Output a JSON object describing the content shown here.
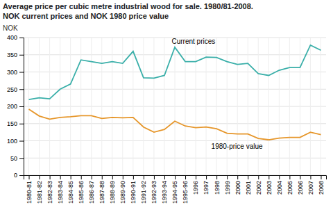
{
  "chart_data": {
    "type": "line",
    "title": "Average price per cubic metre industrial wood for sale. 1980/81-2008.",
    "subtitle": "NOK current prices and NOK 1980 price value",
    "y_label": "NOK",
    "categories": [
      "1980-81",
      "1981-82",
      "1982-83",
      "1983-84",
      "1984-85",
      "1985-86",
      "1986-87",
      "1987-88",
      "1988-89",
      "1989-90",
      "1990-91",
      "1991-92",
      "1992-93",
      "1993-94",
      "1994-95",
      "1995-96",
      "1996",
      "1997",
      "1998",
      "1999",
      "2000",
      "2001",
      "2002",
      "2003",
      "2004",
      "2005",
      "2006",
      "2007",
      "2008"
    ],
    "series": [
      {
        "name": "Current prices",
        "color": "#3aafa9",
        "values": [
          220,
          225,
          222,
          250,
          265,
          335,
          330,
          325,
          330,
          325,
          360,
          283,
          282,
          290,
          372,
          330,
          330,
          343,
          342,
          330,
          322,
          325,
          295,
          290,
          305,
          313,
          313,
          378,
          363
        ]
      },
      {
        "name": "1980-price value",
        "color": "#e6962a",
        "values": [
          192,
          172,
          163,
          168,
          170,
          173,
          173,
          165,
          168,
          167,
          168,
          140,
          125,
          133,
          157,
          143,
          138,
          140,
          135,
          122,
          120,
          120,
          107,
          103,
          108,
          110,
          110,
          125,
          118
        ]
      }
    ],
    "ylim": [
      0,
      400
    ],
    "yticks": [
      0,
      50,
      100,
      150,
      200,
      250,
      300,
      350,
      400
    ],
    "grid": true
  }
}
